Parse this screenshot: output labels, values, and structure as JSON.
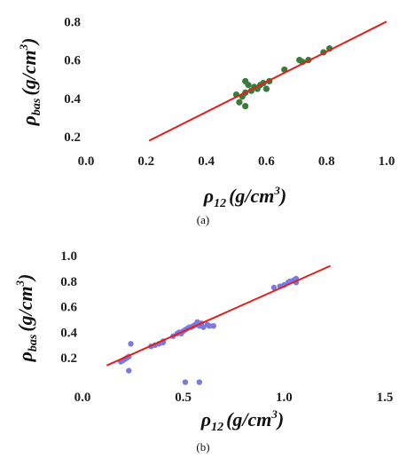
{
  "chart_data": [
    {
      "type": "scatter",
      "panel_label": "(a)",
      "xlabel": {
        "rho": "ρ",
        "sub": "12",
        "unit_open": "(g/cm",
        "unit_sup": "3",
        "unit_close": ")"
      },
      "ylabel": {
        "rho": "ρ",
        "sub": "bas",
        "unit_open": "(g/cm",
        "unit_sup": "3",
        "unit_close": ")"
      },
      "xlim": [
        0.0,
        1.0
      ],
      "ylim": [
        0.15,
        0.82
      ],
      "xticks": [
        "0.0",
        "0.2",
        "0.4",
        "0.6",
        "0.8",
        "1.0"
      ],
      "yticks": [
        "0.2",
        "0.4",
        "0.6",
        "0.8"
      ],
      "xtick_values": [
        0.0,
        0.2,
        0.4,
        0.6,
        0.8,
        1.0
      ],
      "ytick_values": [
        0.2,
        0.4,
        0.6,
        0.8
      ],
      "point_color": "#3a7a3a",
      "line_color": "#e0201c",
      "points": [
        [
          0.5,
          0.42
        ],
        [
          0.51,
          0.38
        ],
        [
          0.52,
          0.41
        ],
        [
          0.53,
          0.43
        ],
        [
          0.53,
          0.49
        ],
        [
          0.53,
          0.36
        ],
        [
          0.54,
          0.47
        ],
        [
          0.55,
          0.44
        ],
        [
          0.56,
          0.46
        ],
        [
          0.57,
          0.45
        ],
        [
          0.58,
          0.47
        ],
        [
          0.59,
          0.48
        ],
        [
          0.6,
          0.45
        ],
        [
          0.61,
          0.49
        ],
        [
          0.66,
          0.55
        ],
        [
          0.71,
          0.6
        ],
        [
          0.72,
          0.59
        ],
        [
          0.74,
          0.6
        ],
        [
          0.79,
          0.64
        ],
        [
          0.81,
          0.66
        ]
      ],
      "fit_line": [
        [
          0.21,
          0.18
        ],
        [
          1.0,
          0.8
        ]
      ]
    },
    {
      "type": "scatter",
      "panel_label": "(b)",
      "xlabel": {
        "rho": "ρ",
        "sub": "12",
        "unit_open": "(g/cm",
        "unit_sup": "3",
        "unit_close": ")"
      },
      "ylabel": {
        "rho": "ρ",
        "sub": "bas",
        "unit_open": "(g/cm",
        "unit_sup": "3",
        "unit_close": ")"
      },
      "xlim": [
        0.0,
        1.5
      ],
      "ylim": [
        0.0,
        1.0
      ],
      "xticks": [
        "0.0",
        "0.5",
        "1.0",
        "1.5"
      ],
      "yticks": [
        "0.2",
        "0.4",
        "0.6",
        "0.8",
        "1.0"
      ],
      "xtick_values": [
        0.0,
        0.5,
        1.0,
        1.5
      ],
      "ytick_values": [
        0.2,
        0.4,
        0.6,
        0.8,
        1.0
      ],
      "point_color": "#7b7bdf",
      "line_color": "#e0201c",
      "points": [
        [
          0.19,
          0.17
        ],
        [
          0.2,
          0.18
        ],
        [
          0.21,
          0.19
        ],
        [
          0.22,
          0.2
        ],
        [
          0.23,
          0.21
        ],
        [
          0.23,
          0.1
        ],
        [
          0.24,
          0.31
        ],
        [
          0.34,
          0.29
        ],
        [
          0.36,
          0.3
        ],
        [
          0.38,
          0.31
        ],
        [
          0.4,
          0.33
        ],
        [
          0.4,
          0.32
        ],
        [
          0.45,
          0.37
        ],
        [
          0.47,
          0.39
        ],
        [
          0.48,
          0.4
        ],
        [
          0.49,
          0.39
        ],
        [
          0.5,
          0.41
        ],
        [
          0.51,
          0.42
        ],
        [
          0.52,
          0.43
        ],
        [
          0.53,
          0.44
        ],
        [
          0.54,
          0.44
        ],
        [
          0.55,
          0.45
        ],
        [
          0.56,
          0.46
        ],
        [
          0.57,
          0.47
        ],
        [
          0.57,
          0.48
        ],
        [
          0.58,
          0.45
        ],
        [
          0.59,
          0.47
        ],
        [
          0.6,
          0.44
        ],
        [
          0.62,
          0.46
        ],
        [
          0.63,
          0.45
        ],
        [
          0.65,
          0.45
        ],
        [
          0.51,
          0.01
        ],
        [
          0.58,
          0.01
        ],
        [
          0.95,
          0.75
        ],
        [
          0.98,
          0.76
        ],
        [
          1.0,
          0.77
        ],
        [
          1.02,
          0.79
        ],
        [
          1.03,
          0.8
        ],
        [
          1.05,
          0.81
        ],
        [
          1.06,
          0.79
        ],
        [
          1.06,
          0.82
        ]
      ],
      "fit_line": [
        [
          0.12,
          0.14
        ],
        [
          1.23,
          0.92
        ]
      ]
    }
  ]
}
